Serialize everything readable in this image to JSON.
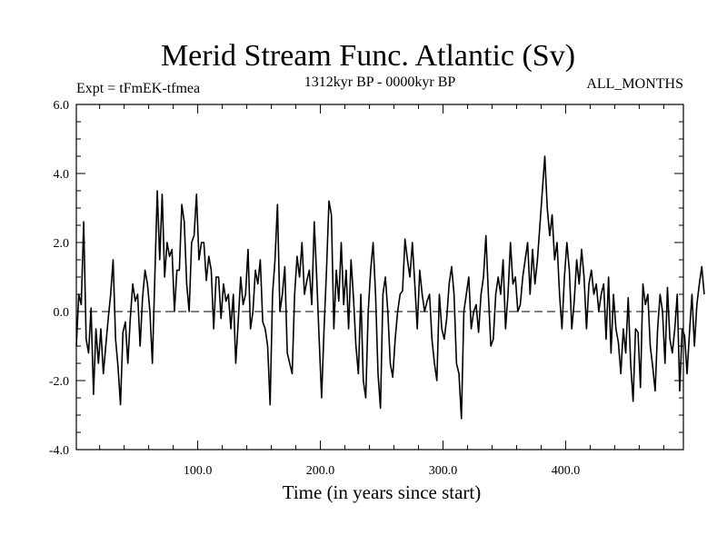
{
  "chart_data": {
    "type": "line",
    "title": "Merid Stream Func. Atlantic (Sv)",
    "experiment_label": "Expt = tFmEK-tfmea",
    "period_label": "1312kyr BP - 0000kyr BP",
    "season_label": "ALL_MONTHS",
    "xlabel": "Time (in years since start)",
    "ylabel": "",
    "xlim": [
      1,
      496
    ],
    "ylim": [
      -4.0,
      6.0
    ],
    "xtick_values": [
      100,
      200,
      300,
      400
    ],
    "xtick_labels": [
      "100.0",
      "200.0",
      "300.0",
      "400.0"
    ],
    "ytick_values": [
      -4,
      -2,
      0,
      2,
      4,
      6
    ],
    "ytick_labels": [
      "-4.0",
      "-2.0",
      "0.0",
      "2.0",
      "4.0",
      "6.0"
    ],
    "reference_line_y": 0.0,
    "series": [
      {
        "name": "Merid Stream Func. Atlantic",
        "x_start": 1,
        "x_step": 2,
        "values": [
          -1.0,
          0.5,
          0.2,
          2.6,
          -0.8,
          -1.2,
          0.1,
          -2.4,
          -0.5,
          -1.5,
          -0.5,
          -1.8,
          -1.0,
          -0.2,
          0.5,
          1.5,
          -0.8,
          -1.6,
          -2.7,
          -0.6,
          -0.3,
          -1.5,
          -0.2,
          0.8,
          0.3,
          0.5,
          -1.0,
          0.4,
          1.2,
          0.8,
          0.0,
          -1.5,
          1.0,
          3.5,
          1.5,
          3.4,
          1.0,
          2.0,
          1.6,
          1.8,
          0.0,
          1.2,
          1.2,
          3.1,
          2.6,
          0.8,
          0.0,
          2.0,
          2.2,
          3.4,
          1.5,
          2.0,
          2.0,
          0.9,
          1.6,
          1.2,
          -0.5,
          1.0,
          1.0,
          -0.2,
          0.8,
          0.3,
          0.5,
          -0.5,
          0.5,
          -1.5,
          -0.3,
          1.0,
          0.2,
          0.5,
          1.8,
          -0.5,
          0.0,
          1.2,
          0.8,
          1.5,
          -0.3,
          -0.5,
          -1.0,
          -2.7,
          0.5,
          1.5,
          3.1,
          0.0,
          0.5,
          1.3,
          -1.2,
          -1.5,
          -1.8,
          0.5,
          1.6,
          1.0,
          2.0,
          0.5,
          0.9,
          1.2,
          0.2,
          2.6,
          1.0,
          -0.8,
          -2.5,
          -0.5,
          1.2,
          3.2,
          2.8,
          -0.5,
          1.2,
          0.3,
          2.0,
          0.2,
          1.2,
          -0.5,
          1.5,
          0.4,
          -1.0,
          -1.8,
          0.5,
          -2.0,
          -2.5,
          0.0,
          1.2,
          2.0,
          0.5,
          -1.8,
          -2.8,
          0.5,
          1.0,
          0.0,
          -1.5,
          -1.9,
          -0.8,
          0.0,
          0.5,
          0.6,
          2.1,
          1.5,
          1.0,
          2.0,
          0.8,
          -0.5,
          1.2,
          0.5,
          0.0,
          0.3,
          0.5,
          -0.8,
          -1.5,
          -2.0,
          0.5,
          -0.5,
          -0.8,
          -0.2,
          0.8,
          1.3,
          0.5,
          -1.5,
          -1.8,
          -3.1,
          0.0,
          0.5,
          1.0,
          -0.5,
          0.0,
          0.2,
          -0.6,
          0.5,
          1.0,
          2.2,
          0.5,
          -1.0,
          -0.8,
          0.5,
          1.0,
          0.5,
          1.5,
          -0.5,
          0.5,
          2.0,
          0.8,
          1.0,
          0.0,
          0.2,
          1.0,
          1.5,
          2.0,
          0.5,
          1.8,
          0.8,
          1.5,
          2.5,
          3.5,
          4.5,
          3.0,
          2.2,
          2.8,
          1.5,
          2.0,
          0.5,
          -0.5,
          1.0,
          2.0,
          1.2,
          -0.5,
          0.3,
          1.5,
          0.8,
          1.8,
          1.0,
          -0.5,
          0.8,
          1.2,
          0.5,
          0.8,
          0.0,
          0.5,
          0.8,
          -0.8,
          1.0,
          -1.2,
          0.5,
          -0.5,
          -0.9,
          -1.8,
          -0.5,
          -1.2,
          0.4,
          -1.5,
          -2.6,
          -0.5,
          -0.6,
          -2.2,
          0.8,
          0.2,
          0.5,
          -1.0,
          -1.6,
          -2.3,
          -0.5,
          0.5,
          0.0,
          -1.5,
          0.7,
          -0.8,
          -1.2,
          -0.5,
          0.5,
          -2.3,
          -0.5,
          -0.7,
          -1.8,
          -0.6,
          0.5,
          -1.0,
          0.2,
          0.8,
          1.3,
          0.5
        ]
      }
    ]
  }
}
